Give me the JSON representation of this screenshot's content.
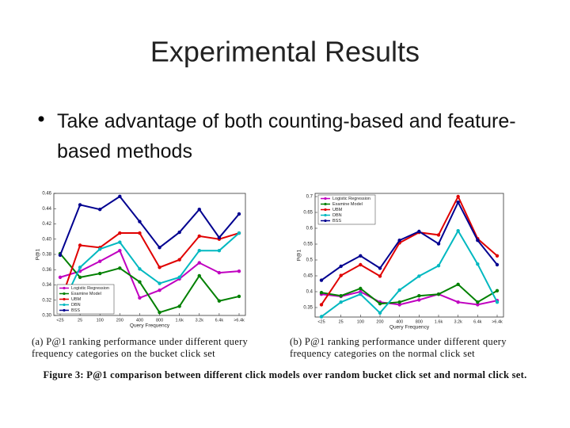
{
  "title": "Experimental Results",
  "bullet": "Take advantage of both counting-based and feature-based methods",
  "figure_caption": "Figure 3: P@1 comparison between different click models over random bucket click set and normal click set.",
  "chart_data": [
    {
      "type": "line",
      "caption": "(a) P@1 ranking performance under different query frequency categories on the bucket click set",
      "x_label": "Query Frequency",
      "y_label": "P@1",
      "categories": [
        "<25",
        "25",
        "100",
        "200",
        "400",
        "800",
        "1.6k",
        "3.2k",
        "6.4k",
        ">6.4k"
      ],
      "ylim": [
        0.3,
        0.46
      ],
      "yticks": [
        {
          "value": 0.3,
          "label": "0.30"
        },
        0.32,
        0.34,
        0.36,
        0.38,
        {
          "value": 0.4,
          "label": "0.40"
        },
        0.42,
        0.44,
        0.46
      ],
      "legend": "lower left",
      "series": [
        {
          "name": "Logistic Regression",
          "color": "#c000c0",
          "values": [
            0.35,
            0.358,
            0.371,
            0.385,
            0.323,
            0.333,
            0.348,
            0.369,
            0.356,
            0.358
          ]
        },
        {
          "name": "Examine Model",
          "color": "#008000",
          "values": [
            0.381,
            0.35,
            0.355,
            0.362,
            0.344,
            0.304,
            0.312,
            0.352,
            0.319,
            0.325
          ]
        },
        {
          "name": "UBM",
          "color": "#e00000",
          "values": [
            0.317,
            0.392,
            0.389,
            0.408,
            0.408,
            0.363,
            0.373,
            0.404,
            0.4,
            0.408
          ]
        },
        {
          "name": "DBN",
          "color": "#00b8c0",
          "values": [
            0.308,
            0.363,
            0.387,
            0.396,
            0.361,
            0.342,
            0.35,
            0.385,
            0.385,
            0.408
          ]
        },
        {
          "name": "BSS",
          "color": "#000090",
          "values": [
            0.379,
            0.445,
            0.439,
            0.456,
            0.423,
            0.389,
            0.409,
            0.439,
            0.402,
            0.433
          ]
        }
      ]
    },
    {
      "type": "line",
      "caption": "(b) P@1 ranking performance under different query frequency categories on the normal click set",
      "x_label": "Query Frequency",
      "y_label": "P@1",
      "categories": [
        "<25",
        "25",
        "100",
        "200",
        "400",
        "800",
        "1.6k",
        "3.2k",
        "6.4k",
        ">6.4k"
      ],
      "ylim": [
        0.32,
        0.71
      ],
      "yticks": [
        0.35,
        0.4,
        0.45,
        0.5,
        0.55,
        0.6,
        0.65,
        0.7
      ],
      "legend": "upper left",
      "series": [
        {
          "name": "Logistic Regression",
          "color": "#c000c0",
          "values": [
            0.392,
            0.385,
            0.4,
            0.367,
            0.359,
            0.374,
            0.392,
            0.367,
            0.359,
            0.372
          ]
        },
        {
          "name": "Examine Model",
          "color": "#008000",
          "values": [
            0.397,
            0.387,
            0.41,
            0.362,
            0.367,
            0.387,
            0.392,
            0.423,
            0.367,
            0.403
          ]
        },
        {
          "name": "UBM",
          "color": "#e00000",
          "values": [
            0.359,
            0.451,
            0.485,
            0.449,
            0.554,
            0.587,
            0.579,
            0.7,
            0.567,
            0.513
          ]
        },
        {
          "name": "DBN",
          "color": "#00b8c0",
          "values": [
            0.321,
            0.367,
            0.392,
            0.333,
            0.405,
            0.449,
            0.482,
            0.592,
            0.487,
            0.367
          ]
        },
        {
          "name": "BSS",
          "color": "#000090",
          "values": [
            0.436,
            0.48,
            0.513,
            0.474,
            0.562,
            0.59,
            0.551,
            0.682,
            0.562,
            0.485
          ]
        }
      ]
    }
  ]
}
